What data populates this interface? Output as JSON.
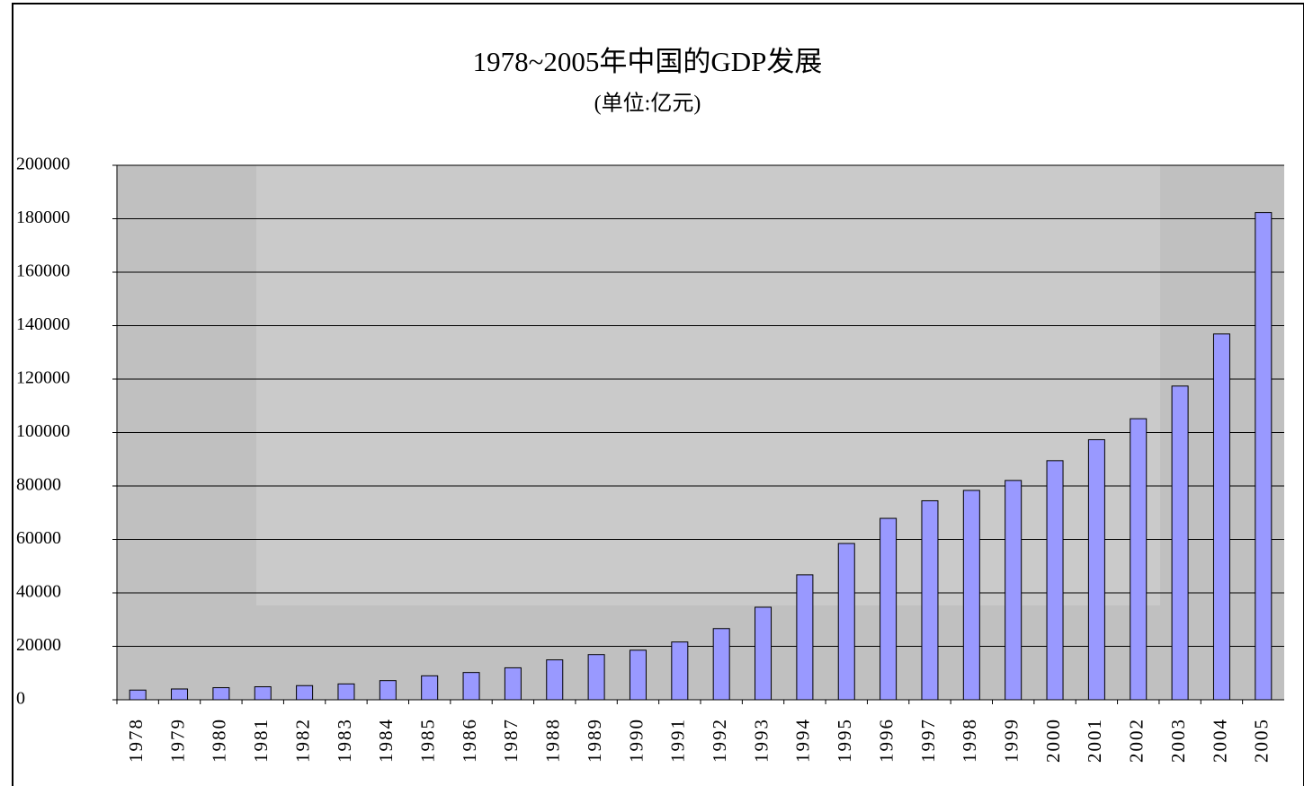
{
  "chart_data": {
    "type": "bar",
    "title": "1978~2005年中国的GDP发展",
    "subtitle": "(单位:亿元)",
    "categories": [
      "1978",
      "1979",
      "1980",
      "1981",
      "1982",
      "1983",
      "1984",
      "1985",
      "1986",
      "1987",
      "1988",
      "1989",
      "1990",
      "1991",
      "1992",
      "1993",
      "1994",
      "1995",
      "1996",
      "1997",
      "1998",
      "1999",
      "2000",
      "2001",
      "2002",
      "2003",
      "2004",
      "2005"
    ],
    "values": [
      3624,
      4038,
      4518,
      4862,
      5295,
      5935,
      7171,
      8964,
      10202,
      11963,
      14928,
      16909,
      18548,
      21618,
      26638,
      34634,
      46759,
      58478,
      67885,
      74463,
      78345,
      82068,
      89468,
      97315,
      105172,
      117390,
      136876,
      182321
    ],
    "color": "#9999ff",
    "ylim": [
      0,
      200000
    ],
    "yticks": [
      0,
      20000,
      40000,
      60000,
      80000,
      100000,
      120000,
      140000,
      160000,
      180000,
      200000
    ],
    "grid": true
  }
}
